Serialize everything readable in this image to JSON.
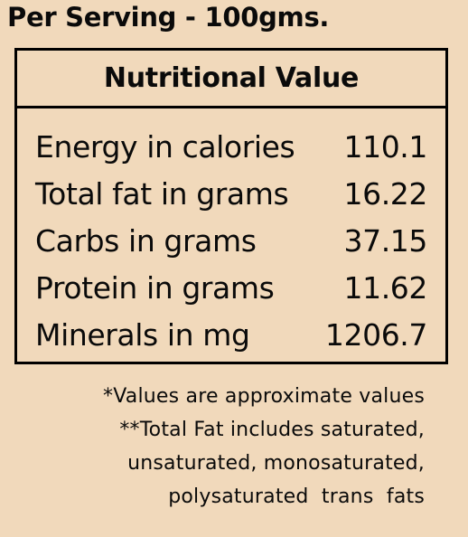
{
  "heading": "Per Serving - 100gms.",
  "panel": {
    "title": "Nutritional Value",
    "rows": [
      {
        "label": "Energy in calories",
        "value": "110.1"
      },
      {
        "label": "Total fat in grams",
        "value": "16.22"
      },
      {
        "label": "Carbs in grams",
        "value": "37.15"
      },
      {
        "label": "Protein in grams",
        "value": "11.62"
      },
      {
        "label": "Minerals in mg",
        "value": "1206.7"
      }
    ]
  },
  "notes": {
    "line1": "*Values are approximate values",
    "line2": "**Total Fat includes saturated,",
    "line3": "unsaturated, monosaturated,",
    "line4": "polysaturated  trans  fats"
  },
  "colors": {
    "background": "#f1d9bb",
    "text": "#0a0a0a",
    "border": "#000000"
  }
}
